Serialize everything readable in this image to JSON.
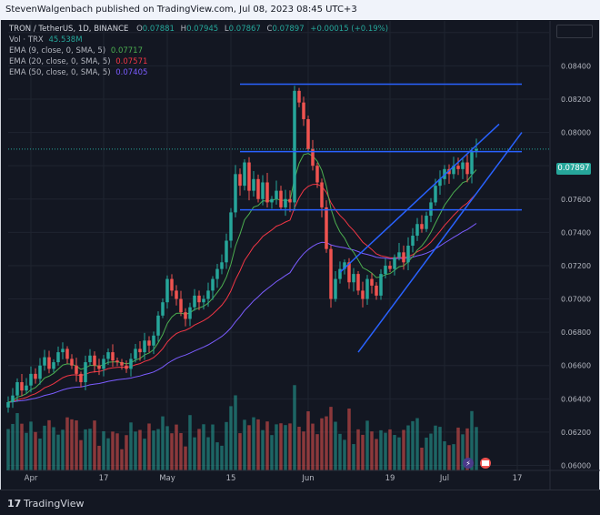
{
  "header": {
    "publisher": "StevenWalgenbach published on TradingView.com, Jul 08, 2023 08:45 UTC+3"
  },
  "legend": {
    "symbol": "TRON / TetherUS, 1D, BINANCE",
    "ohlc": {
      "o_label": "O",
      "o": "0.07881",
      "h_label": "H",
      "h": "0.07945",
      "l_label": "L",
      "l": "0.07867",
      "c_label": "C",
      "c": "0.07897",
      "change": "+0.00015 (+0.19%)"
    },
    "volume": {
      "label": "Vol · TRX",
      "value": "45.538M"
    },
    "ema9": {
      "label": "EMA (9, close, 0, SMA, 5)",
      "value": "0.07717"
    },
    "ema20": {
      "label": "EMA (20, close, 0, SMA, 5)",
      "value": "0.07571"
    },
    "ema50": {
      "label": "EMA (50, close, 0, SMA, 5)",
      "value": "0.07405"
    }
  },
  "price_badge": "0.07897",
  "footer": {
    "brand": "TradingView",
    "logo_mark": "17"
  },
  "colors": {
    "background": "#131722",
    "up": "#26a69a",
    "down": "#ef5350",
    "ema9": "#4caf50",
    "ema20": "#f23645",
    "ema50": "#7b5cff",
    "drawing": "#2962ff",
    "text": "#b2b5be",
    "grid": "#1f2430"
  },
  "icons": [
    "flash-icon",
    "flag-icon",
    "tradingview-logo-icon"
  ],
  "chart_data": {
    "type": "candlestick",
    "y_axis": {
      "range": [
        0.0597,
        0.0867
      ],
      "ticks": [
        "0.06000",
        "0.06200",
        "0.06400",
        "0.06600",
        "0.06800",
        "0.07000",
        "0.07200",
        "0.07400",
        "0.07600",
        "0.07800",
        "0.08000",
        "0.08200",
        "0.08400",
        "0.08600"
      ]
    },
    "x_axis": {
      "ticks": [
        "Apr",
        "17",
        "May",
        "15",
        "Jun",
        "19",
        "Jul",
        "17"
      ],
      "tick_dates": [
        "2023-04-01",
        "2023-04-17",
        "2023-05-01",
        "2023-05-15",
        "2023-06-01",
        "2023-06-19",
        "2023-07-01",
        "2023-07-17"
      ],
      "range": [
        "2023-03-27",
        "2023-07-24"
      ]
    },
    "first_date": "2023-03-27",
    "last_date": "2023-07-08",
    "closes": [
      0.0638,
      0.0642,
      0.065,
      0.0645,
      0.0648,
      0.0655,
      0.0652,
      0.066,
      0.0665,
      0.0658,
      0.0662,
      0.0668,
      0.067,
      0.0664,
      0.066,
      0.0655,
      0.065,
      0.0662,
      0.0666,
      0.066,
      0.0658,
      0.0664,
      0.0668,
      0.0663,
      0.0662,
      0.066,
      0.0658,
      0.0664,
      0.067,
      0.0668,
      0.0675,
      0.0672,
      0.0678,
      0.069,
      0.0698,
      0.0712,
      0.0705,
      0.07,
      0.0692,
      0.0688,
      0.0695,
      0.0702,
      0.0698,
      0.07,
      0.0705,
      0.0712,
      0.0718,
      0.0722,
      0.0735,
      0.0752,
      0.0775,
      0.0768,
      0.0782,
      0.0765,
      0.0772,
      0.076,
      0.077,
      0.0758,
      0.076,
      0.0765,
      0.0755,
      0.076,
      0.0758,
      0.0825,
      0.0818,
      0.0808,
      0.079,
      0.078,
      0.077,
      0.0755,
      0.073,
      0.07,
      0.0712,
      0.0718,
      0.0722,
      0.071,
      0.0715,
      0.0705,
      0.07,
      0.0712,
      0.0708,
      0.0702,
      0.0715,
      0.072,
      0.0718,
      0.0725,
      0.0728,
      0.0722,
      0.0732,
      0.0738,
      0.0745,
      0.0742,
      0.075,
      0.0758,
      0.0768,
      0.0772,
      0.0778,
      0.0775,
      0.078,
      0.0778,
      0.0782,
      0.0775,
      0.0789,
      0.079
    ],
    "volume_max_label": "45.538M",
    "horizontal_levels": [
      0.0829,
      0.07885,
      0.07535
    ],
    "channel": {
      "upper": {
        "from": [
          "2023-06-08",
          0.0716
        ],
        "to": [
          "2023-07-13",
          0.0805
        ]
      },
      "lower": {
        "from": [
          "2023-06-12",
          0.0668
        ],
        "to": [
          "2023-07-18",
          0.08
        ]
      }
    },
    "ema_current": {
      "ema9": 0.07717,
      "ema20": 0.07571,
      "ema50": 0.07405
    }
  }
}
